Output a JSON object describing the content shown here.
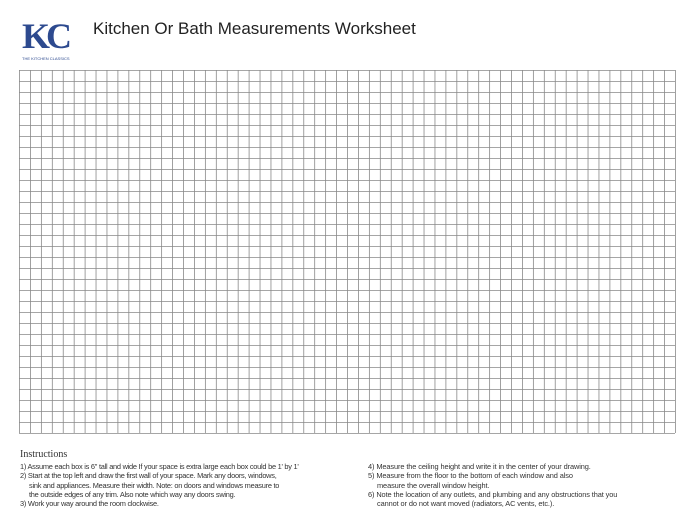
{
  "logo": {
    "letters": "KC",
    "tagline": "THE KITCHEN CLASSICS",
    "color": "#2d4a8f"
  },
  "title": "Kitchen Or Bath Measurements Worksheet",
  "grid": {
    "columns": 60,
    "rows": 33,
    "line_color": "#888888"
  },
  "instructions": {
    "heading": "Instructions",
    "left": [
      {
        "lines": [
          "1) Assume each box is 6\" tall and wide If your space is extra large each box could be 1' by 1'"
        ]
      },
      {
        "lines": [
          "2) Start at the top left and draw the first wall of your space. Mark any doors, windows,",
          "sink and appliances. Measure their width. Note: on doors and windows measure to",
          "the outside edges of any trim. Also note which way any doors swing."
        ]
      },
      {
        "lines": [
          "3) Work your way around the room clockwise."
        ]
      }
    ],
    "right": [
      {
        "lines": [
          "4) Measure the ceiling height and write it in the center of your drawing."
        ]
      },
      {
        "lines": [
          "5) Measure from the floor to the bottom of each window and also",
          "measure the overall window height."
        ]
      },
      {
        "lines": [
          "6) Note the location of any outlets, and plumbing and any obstructions that you",
          "cannot or do not want moved (radiators, AC vents, etc.)."
        ]
      }
    ]
  }
}
